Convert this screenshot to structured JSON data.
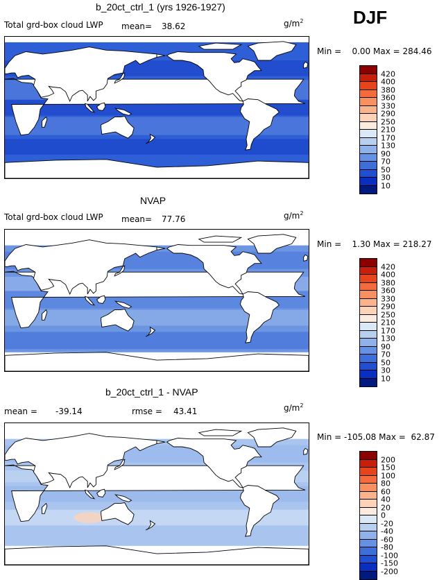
{
  "season_label": "DJF",
  "panels": [
    {
      "title": "b_20ct_ctrl_1 (yrs 1926-1927)",
      "variable": "Total grd-box cloud LWP",
      "mean_label": "mean=",
      "mean_value": "38.62",
      "units_base": "g/m",
      "units_exp": "2",
      "min_label": "Min =",
      "min_value": "0.00",
      "max_label": "Max =",
      "max_value": "284.46",
      "colorbar": {
        "labels": [
          "420",
          "400",
          "380",
          "360",
          "330",
          "290",
          "250",
          "210",
          "170",
          "130",
          "90",
          "70",
          "50",
          "30",
          "10"
        ],
        "colors": [
          "#8b0000",
          "#c81e0a",
          "#e8441c",
          "#f46b3c",
          "#f8915f",
          "#fbb38c",
          "#fdd3b8",
          "#fcecdf",
          "#dbe9f7",
          "#b7d0f0",
          "#8fb2ea",
          "#6592e2",
          "#3d6fd8",
          "#1f4fd2",
          "#0a2fc0",
          "#001a80"
        ],
        "min": 0,
        "max": 420
      }
    },
    {
      "title": "NVAP",
      "variable": "Total grd-box cloud LWP",
      "mean_label": "mean=",
      "mean_value": "77.76",
      "units_base": "g/m",
      "units_exp": "2",
      "min_label": "Min =",
      "min_value": "1.30",
      "max_label": "Max =",
      "max_value": "218.27",
      "colorbar": {
        "labels": [
          "420",
          "400",
          "380",
          "360",
          "330",
          "290",
          "250",
          "210",
          "170",
          "130",
          "90",
          "70",
          "50",
          "30",
          "10"
        ],
        "colors": [
          "#8b0000",
          "#c81e0a",
          "#e8441c",
          "#f46b3c",
          "#f8915f",
          "#fbb38c",
          "#fdd3b8",
          "#fcecdf",
          "#dbe9f7",
          "#b7d0f0",
          "#8fb2ea",
          "#6592e2",
          "#3d6fd8",
          "#1f4fd2",
          "#0a2fc0",
          "#001a80"
        ],
        "min": 0,
        "max": 420
      }
    },
    {
      "title": "b_20ct_ctrl_1 - NVAP",
      "variable": "",
      "mean_label": "mean =",
      "mean_value": "-39.14",
      "rmse_label": "rmse =",
      "rmse_value": "43.41",
      "units_base": "g/m",
      "units_exp": "2",
      "min_label": "Min =",
      "min_value": "-105.08",
      "max_label": "Max =",
      "max_value": "62.87",
      "colorbar": {
        "labels": [
          "200",
          "150",
          "100",
          "80",
          "60",
          "40",
          "20",
          "0",
          "-20",
          "-40",
          "-60",
          "-80",
          "-100",
          "-150",
          "-200"
        ],
        "colors": [
          "#8b0000",
          "#c81e0a",
          "#e8441c",
          "#f46b3c",
          "#f8915f",
          "#fbb38c",
          "#fdd3b8",
          "#fcecdf",
          "#dbe9f7",
          "#b7d0f0",
          "#8fb2ea",
          "#6592e2",
          "#3d6fd8",
          "#1f4fd2",
          "#0a2fc0",
          "#001a80"
        ],
        "min": -200,
        "max": 200
      }
    }
  ],
  "map_colors": {
    "land": "#ffffff",
    "coast": "#000000",
    "model_ocean": "#2e5fd6",
    "model_high": "#0a2fc0",
    "model_low": "#7fa4e8",
    "obs_ocean": "#6d96e2",
    "obs_high": "#2e5fd6",
    "obs_low": "#a9c4ef",
    "diff_ocean": "#a9c4ef",
    "diff_mid": "#8fb2ea",
    "diff_low": "#dbe9f7",
    "diff_pos": "#fdd3b8"
  }
}
